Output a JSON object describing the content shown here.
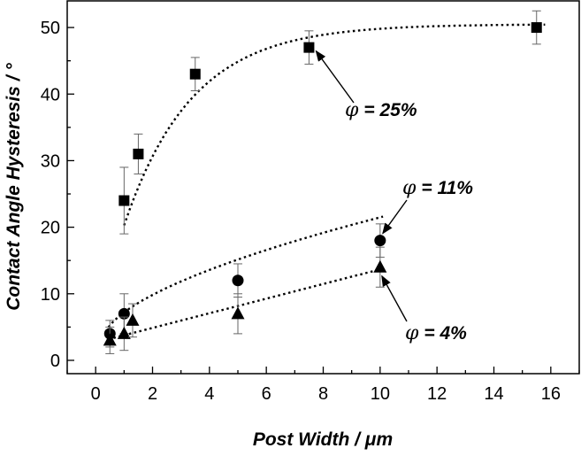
{
  "chart_data": {
    "type": "scatter",
    "title": "",
    "xlabel": "Post Width / μm",
    "ylabel": "Contact Angle Hysteresis / °",
    "xlim": [
      -1,
      17
    ],
    "ylim": [
      -2,
      54
    ],
    "xticks": [
      0,
      2,
      4,
      6,
      8,
      10,
      12,
      14,
      16
    ],
    "yticks": [
      0,
      10,
      20,
      30,
      40,
      50
    ],
    "grid": false,
    "legend": "none",
    "series": [
      {
        "marker": "square",
        "annotation_symbol": "φ",
        "annotation_text": "= 25%",
        "x": [
          1,
          1.5,
          3.5,
          7.5,
          15.5
        ],
        "y": [
          24,
          31,
          43,
          47,
          50
        ],
        "err": [
          5,
          3,
          2.5,
          2.5,
          2.5
        ]
      },
      {
        "marker": "circle",
        "annotation_symbol": "φ",
        "annotation_text": "= 11%",
        "x": [
          0.5,
          1,
          5,
          10
        ],
        "y": [
          4,
          7,
          12,
          18
        ],
        "err": [
          2,
          3,
          2.5,
          2.5
        ]
      },
      {
        "marker": "triangle",
        "annotation_symbol": "φ",
        "annotation_text": "= 4%",
        "x": [
          0.5,
          1,
          1.3,
          5,
          10
        ],
        "y": [
          3,
          4,
          6,
          7,
          14
        ],
        "err": [
          2,
          2.5,
          2.5,
          3,
          3
        ]
      }
    ]
  }
}
